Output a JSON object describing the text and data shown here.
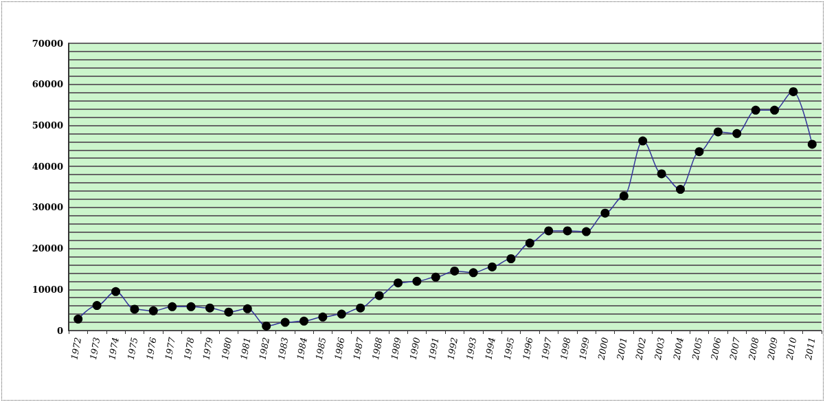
{
  "chart_data": {
    "type": "line",
    "categories": [
      "1972",
      "1973",
      "1974",
      "1975",
      "1976",
      "1977",
      "1978",
      "1979",
      "1980",
      "1981",
      "1982",
      "1983",
      "1984",
      "1985",
      "1986",
      "1987",
      "1988",
      "1989",
      "1990",
      "1991",
      "1992",
      "1993",
      "1994",
      "1995",
      "1996",
      "1997",
      "1998",
      "1999",
      "2000",
      "2001",
      "2002",
      "2003",
      "2004",
      "2005",
      "2006",
      "2007",
      "2008",
      "2009",
      "2010",
      "2011"
    ],
    "series": [
      {
        "color": "#333399",
        "values": [
          2800,
          6100,
          9500,
          5200,
          4800,
          5800,
          5800,
          5500,
          4500,
          5300,
          1100,
          2000,
          2300,
          3300,
          4000,
          5500,
          8500,
          11600,
          12000,
          13000,
          14500,
          14100,
          15500,
          17500,
          21300,
          24300,
          24300,
          24100,
          28600,
          32800,
          46200,
          38200,
          34400,
          43600,
          48400,
          48000,
          53700,
          53700,
          58200,
          45400
        ]
      }
    ],
    "ylim": [
      0,
      70000
    ],
    "yticks": [
      0,
      {
        "value": 2000,
        "label": null
      },
      {
        "value": 4000,
        "label": null
      },
      {
        "value": 6000,
        "label": null
      },
      {
        "value": 8000,
        "label": null
      },
      10000,
      {
        "value": 12000,
        "label": null
      },
      {
        "value": 14000,
        "label": null
      },
      {
        "value": 16000,
        "label": null
      },
      {
        "value": 18000,
        "label": null
      },
      20000,
      {
        "value": 22000,
        "label": null
      },
      {
        "value": 24000,
        "label": null
      },
      {
        "value": 26000,
        "label": null
      },
      {
        "value": 28000,
        "label": null
      },
      30000,
      {
        "value": 32000,
        "label": null
      },
      {
        "value": 34000,
        "label": null
      },
      {
        "value": 36000,
        "label": null
      },
      {
        "value": 38000,
        "label": null
      },
      40000,
      {
        "value": 42000,
        "label": null
      },
      {
        "value": 44000,
        "label": null
      },
      {
        "value": 46000,
        "label": null
      },
      {
        "value": 48000,
        "label": null
      },
      50000,
      {
        "value": 52000,
        "label": null
      },
      {
        "value": 54000,
        "label": null
      },
      {
        "value": 56000,
        "label": null
      },
      {
        "value": 58000,
        "label": null
      },
      60000,
      {
        "value": 62000,
        "label": null
      },
      {
        "value": 64000,
        "label": null
      },
      {
        "value": 66000,
        "label": null
      },
      {
        "value": 68000,
        "label": null
      },
      70000
    ],
    "grid": "y",
    "marker": "circle",
    "line_style": "solid"
  }
}
